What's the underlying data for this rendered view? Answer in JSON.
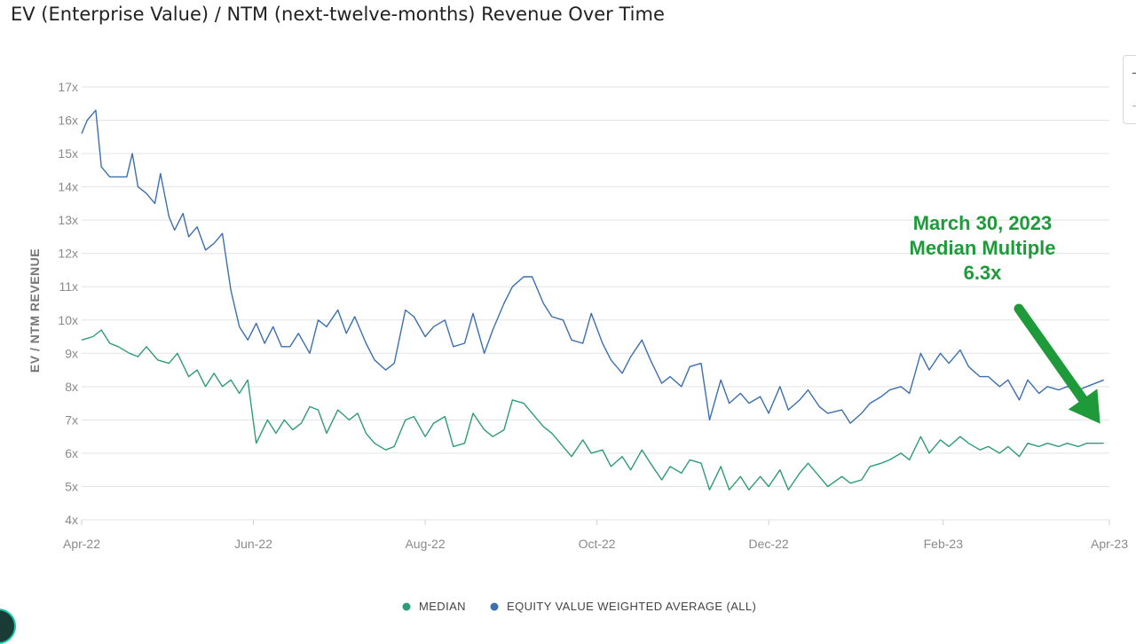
{
  "header": {
    "title": "EV (Enterprise Value) / NTM (next-twelve-months) Revenue Over Time"
  },
  "chart_data": {
    "type": "line",
    "title": "EV (Enterprise Value) / NTM (next-twelve-months) Revenue Over Time",
    "xlabel": "",
    "ylabel": "EV / NTM REVENUE",
    "ylim": [
      4,
      17
    ],
    "yticks": [
      4,
      5,
      6,
      7,
      8,
      9,
      10,
      11,
      12,
      13,
      14,
      15,
      16,
      17
    ],
    "ytick_labels": [
      "4x",
      "5x",
      "6x",
      "7x",
      "8x",
      "9x",
      "10x",
      "11x",
      "12x",
      "13x",
      "14x",
      "15x",
      "16x",
      "17x"
    ],
    "x_range": [
      "2022-04-01",
      "2023-04-01"
    ],
    "xticks": [
      "2022-04-01",
      "2022-06-01",
      "2022-08-01",
      "2022-10-01",
      "2022-12-01",
      "2023-02-01",
      "2023-04-01"
    ],
    "xtick_labels": [
      "Apr-22",
      "Jun-22",
      "Aug-22",
      "Oct-22",
      "Dec-22",
      "Feb-23",
      "Apr-23"
    ],
    "grid": true,
    "legend_position": "bottom-center",
    "series": [
      {
        "name": "MEDIAN",
        "color": "#2e9c74",
        "points": [
          [
            "2022-04-01",
            9.4
          ],
          [
            "2022-04-05",
            9.5
          ],
          [
            "2022-04-08",
            9.7
          ],
          [
            "2022-04-11",
            9.3
          ],
          [
            "2022-04-14",
            9.2
          ],
          [
            "2022-04-18",
            9.0
          ],
          [
            "2022-04-21",
            8.9
          ],
          [
            "2022-04-24",
            9.2
          ],
          [
            "2022-04-28",
            8.8
          ],
          [
            "2022-05-02",
            8.7
          ],
          [
            "2022-05-05",
            9.0
          ],
          [
            "2022-05-09",
            8.3
          ],
          [
            "2022-05-12",
            8.5
          ],
          [
            "2022-05-15",
            8.0
          ],
          [
            "2022-05-18",
            8.4
          ],
          [
            "2022-05-21",
            8.0
          ],
          [
            "2022-05-24",
            8.2
          ],
          [
            "2022-05-27",
            7.8
          ],
          [
            "2022-05-30",
            8.2
          ],
          [
            "2022-06-02",
            6.3
          ],
          [
            "2022-06-06",
            7.0
          ],
          [
            "2022-06-09",
            6.6
          ],
          [
            "2022-06-12",
            7.0
          ],
          [
            "2022-06-15",
            6.7
          ],
          [
            "2022-06-18",
            6.9
          ],
          [
            "2022-06-21",
            7.4
          ],
          [
            "2022-06-24",
            7.3
          ],
          [
            "2022-06-27",
            6.6
          ],
          [
            "2022-07-01",
            7.3
          ],
          [
            "2022-07-05",
            7.0
          ],
          [
            "2022-07-08",
            7.2
          ],
          [
            "2022-07-11",
            6.6
          ],
          [
            "2022-07-14",
            6.3
          ],
          [
            "2022-07-18",
            6.1
          ],
          [
            "2022-07-21",
            6.2
          ],
          [
            "2022-07-25",
            7.0
          ],
          [
            "2022-07-28",
            7.1
          ],
          [
            "2022-08-01",
            6.5
          ],
          [
            "2022-08-04",
            6.9
          ],
          [
            "2022-08-08",
            7.1
          ],
          [
            "2022-08-11",
            6.2
          ],
          [
            "2022-08-15",
            6.3
          ],
          [
            "2022-08-18",
            7.2
          ],
          [
            "2022-08-22",
            6.7
          ],
          [
            "2022-08-25",
            6.5
          ],
          [
            "2022-08-29",
            6.7
          ],
          [
            "2022-09-01",
            7.6
          ],
          [
            "2022-09-05",
            7.5
          ],
          [
            "2022-09-08",
            7.2
          ],
          [
            "2022-09-12",
            6.8
          ],
          [
            "2022-09-15",
            6.6
          ],
          [
            "2022-09-19",
            6.2
          ],
          [
            "2022-09-22",
            5.9
          ],
          [
            "2022-09-26",
            6.4
          ],
          [
            "2022-09-29",
            6.0
          ],
          [
            "2022-10-03",
            6.1
          ],
          [
            "2022-10-06",
            5.6
          ],
          [
            "2022-10-10",
            5.9
          ],
          [
            "2022-10-13",
            5.5
          ],
          [
            "2022-10-17",
            6.1
          ],
          [
            "2022-10-20",
            5.7
          ],
          [
            "2022-10-24",
            5.2
          ],
          [
            "2022-10-27",
            5.6
          ],
          [
            "2022-10-31",
            5.4
          ],
          [
            "2022-11-03",
            5.8
          ],
          [
            "2022-11-07",
            5.7
          ],
          [
            "2022-11-10",
            4.9
          ],
          [
            "2022-11-14",
            5.6
          ],
          [
            "2022-11-17",
            4.9
          ],
          [
            "2022-11-21",
            5.3
          ],
          [
            "2022-11-24",
            4.9
          ],
          [
            "2022-11-28",
            5.3
          ],
          [
            "2022-12-01",
            5.0
          ],
          [
            "2022-12-05",
            5.5
          ],
          [
            "2022-12-08",
            4.9
          ],
          [
            "2022-12-12",
            5.4
          ],
          [
            "2022-12-15",
            5.7
          ],
          [
            "2022-12-19",
            5.3
          ],
          [
            "2022-12-22",
            5.0
          ],
          [
            "2022-12-27",
            5.3
          ],
          [
            "2022-12-30",
            5.1
          ],
          [
            "2023-01-03",
            5.2
          ],
          [
            "2023-01-06",
            5.6
          ],
          [
            "2023-01-10",
            5.7
          ],
          [
            "2023-01-13",
            5.8
          ],
          [
            "2023-01-17",
            6.0
          ],
          [
            "2023-01-20",
            5.8
          ],
          [
            "2023-01-24",
            6.5
          ],
          [
            "2023-01-27",
            6.0
          ],
          [
            "2023-01-31",
            6.4
          ],
          [
            "2023-02-03",
            6.2
          ],
          [
            "2023-02-07",
            6.5
          ],
          [
            "2023-02-10",
            6.3
          ],
          [
            "2023-02-14",
            6.1
          ],
          [
            "2023-02-17",
            6.2
          ],
          [
            "2023-02-21",
            6.0
          ],
          [
            "2023-02-24",
            6.2
          ],
          [
            "2023-02-28",
            5.9
          ],
          [
            "2023-03-03",
            6.3
          ],
          [
            "2023-03-07",
            6.2
          ],
          [
            "2023-03-10",
            6.3
          ],
          [
            "2023-03-14",
            6.2
          ],
          [
            "2023-03-17",
            6.3
          ],
          [
            "2023-03-21",
            6.2
          ],
          [
            "2023-03-24",
            6.3
          ],
          [
            "2023-03-30",
            6.3
          ]
        ]
      },
      {
        "name": "EQUITY VALUE WEIGHTED AVERAGE (ALL)",
        "color": "#3c6fb0",
        "points": [
          [
            "2022-04-01",
            15.6
          ],
          [
            "2022-04-03",
            16.0
          ],
          [
            "2022-04-06",
            16.3
          ],
          [
            "2022-04-08",
            14.6
          ],
          [
            "2022-04-11",
            14.3
          ],
          [
            "2022-04-14",
            14.3
          ],
          [
            "2022-04-17",
            14.3
          ],
          [
            "2022-04-19",
            15.0
          ],
          [
            "2022-04-21",
            14.0
          ],
          [
            "2022-04-24",
            13.8
          ],
          [
            "2022-04-27",
            13.5
          ],
          [
            "2022-04-29",
            14.4
          ],
          [
            "2022-05-02",
            13.1
          ],
          [
            "2022-05-04",
            12.7
          ],
          [
            "2022-05-07",
            13.2
          ],
          [
            "2022-05-09",
            12.5
          ],
          [
            "2022-05-12",
            12.8
          ],
          [
            "2022-05-15",
            12.1
          ],
          [
            "2022-05-18",
            12.3
          ],
          [
            "2022-05-21",
            12.6
          ],
          [
            "2022-05-24",
            10.9
          ],
          [
            "2022-05-27",
            9.8
          ],
          [
            "2022-05-30",
            9.4
          ],
          [
            "2022-06-02",
            9.9
          ],
          [
            "2022-06-05",
            9.3
          ],
          [
            "2022-06-08",
            9.8
          ],
          [
            "2022-06-11",
            9.2
          ],
          [
            "2022-06-14",
            9.2
          ],
          [
            "2022-06-17",
            9.6
          ],
          [
            "2022-06-21",
            9.0
          ],
          [
            "2022-06-24",
            10.0
          ],
          [
            "2022-06-27",
            9.8
          ],
          [
            "2022-07-01",
            10.3
          ],
          [
            "2022-07-04",
            9.6
          ],
          [
            "2022-07-07",
            10.1
          ],
          [
            "2022-07-11",
            9.3
          ],
          [
            "2022-07-14",
            8.8
          ],
          [
            "2022-07-18",
            8.5
          ],
          [
            "2022-07-21",
            8.7
          ],
          [
            "2022-07-25",
            10.3
          ],
          [
            "2022-07-28",
            10.1
          ],
          [
            "2022-08-01",
            9.5
          ],
          [
            "2022-08-04",
            9.8
          ],
          [
            "2022-08-08",
            10.0
          ],
          [
            "2022-08-11",
            9.2
          ],
          [
            "2022-08-15",
            9.3
          ],
          [
            "2022-08-18",
            10.2
          ],
          [
            "2022-08-22",
            9.0
          ],
          [
            "2022-08-25",
            9.7
          ],
          [
            "2022-08-29",
            10.5
          ],
          [
            "2022-09-01",
            11.0
          ],
          [
            "2022-09-05",
            11.3
          ],
          [
            "2022-09-08",
            11.3
          ],
          [
            "2022-09-12",
            10.5
          ],
          [
            "2022-09-15",
            10.1
          ],
          [
            "2022-09-19",
            10.0
          ],
          [
            "2022-09-22",
            9.4
          ],
          [
            "2022-09-26",
            9.3
          ],
          [
            "2022-09-29",
            10.2
          ],
          [
            "2022-10-03",
            9.3
          ],
          [
            "2022-10-06",
            8.8
          ],
          [
            "2022-10-10",
            8.4
          ],
          [
            "2022-10-13",
            8.9
          ],
          [
            "2022-10-17",
            9.4
          ],
          [
            "2022-10-20",
            8.8
          ],
          [
            "2022-10-24",
            8.1
          ],
          [
            "2022-10-27",
            8.3
          ],
          [
            "2022-10-31",
            8.0
          ],
          [
            "2022-11-03",
            8.6
          ],
          [
            "2022-11-07",
            8.7
          ],
          [
            "2022-11-10",
            7.0
          ],
          [
            "2022-11-14",
            8.2
          ],
          [
            "2022-11-17",
            7.5
          ],
          [
            "2022-11-21",
            7.8
          ],
          [
            "2022-11-24",
            7.5
          ],
          [
            "2022-11-28",
            7.7
          ],
          [
            "2022-12-01",
            7.2
          ],
          [
            "2022-12-05",
            8.0
          ],
          [
            "2022-12-08",
            7.3
          ],
          [
            "2022-12-12",
            7.6
          ],
          [
            "2022-12-15",
            7.9
          ],
          [
            "2022-12-19",
            7.4
          ],
          [
            "2022-12-22",
            7.2
          ],
          [
            "2022-12-27",
            7.3
          ],
          [
            "2022-12-30",
            6.9
          ],
          [
            "2023-01-03",
            7.2
          ],
          [
            "2023-01-06",
            7.5
          ],
          [
            "2023-01-10",
            7.7
          ],
          [
            "2023-01-13",
            7.9
          ],
          [
            "2023-01-17",
            8.0
          ],
          [
            "2023-01-20",
            7.8
          ],
          [
            "2023-01-24",
            9.0
          ],
          [
            "2023-01-27",
            8.5
          ],
          [
            "2023-01-31",
            9.0
          ],
          [
            "2023-02-03",
            8.7
          ],
          [
            "2023-02-07",
            9.1
          ],
          [
            "2023-02-10",
            8.6
          ],
          [
            "2023-02-14",
            8.3
          ],
          [
            "2023-02-17",
            8.3
          ],
          [
            "2023-02-21",
            8.0
          ],
          [
            "2023-02-24",
            8.2
          ],
          [
            "2023-02-28",
            7.6
          ],
          [
            "2023-03-03",
            8.2
          ],
          [
            "2023-03-07",
            7.8
          ],
          [
            "2023-03-10",
            8.0
          ],
          [
            "2023-03-14",
            7.9
          ],
          [
            "2023-03-17",
            8.0
          ],
          [
            "2023-03-21",
            7.9
          ],
          [
            "2023-03-24",
            8.0
          ],
          [
            "2023-03-30",
            8.2
          ]
        ]
      }
    ],
    "annotation": {
      "lines": [
        "March 30, 2023",
        "Median Multiple",
        "6.3x"
      ],
      "color": "#1e9a3a",
      "target": [
        "2023-03-30",
        6.3
      ]
    }
  }
}
